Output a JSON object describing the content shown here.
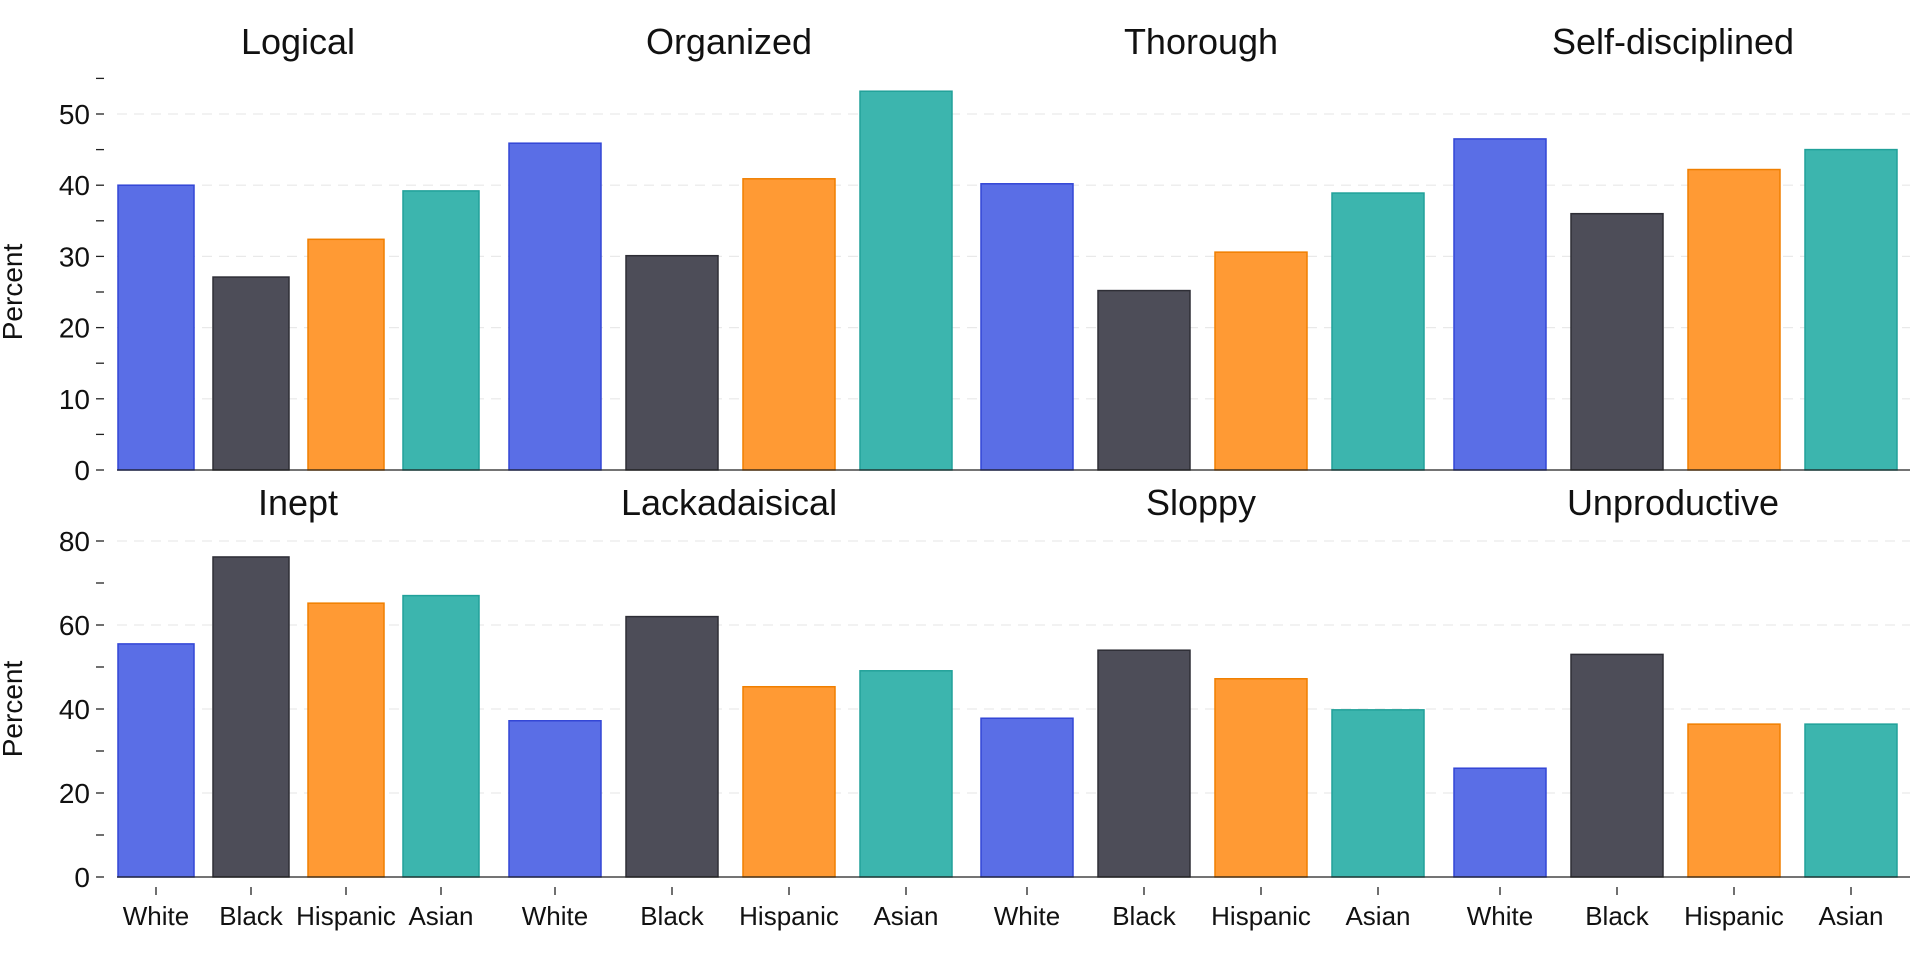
{
  "chart_data": [
    {
      "type": "bar",
      "row": "top",
      "ylabel": "Percent",
      "ylim": [
        0,
        55
      ],
      "yticks": [
        0,
        10,
        20,
        30,
        40,
        50
      ],
      "grid": true,
      "panels": [
        {
          "title": "Logical",
          "categories": [
            "White",
            "Black",
            "Hispanic",
            "Asian"
          ],
          "values": [
            40.0,
            27.1,
            32.4,
            39.2
          ]
        },
        {
          "title": "Organized",
          "categories": [
            "White",
            "Black",
            "Hispanic",
            "Asian"
          ],
          "values": [
            45.9,
            30.1,
            40.9,
            53.2
          ]
        },
        {
          "title": "Thorough",
          "categories": [
            "White",
            "Black",
            "Hispanic",
            "Asian"
          ],
          "values": [
            40.2,
            25.2,
            30.6,
            38.9
          ]
        },
        {
          "title": "Self-disciplined",
          "categories": [
            "White",
            "Black",
            "Hispanic",
            "Asian"
          ],
          "values": [
            46.5,
            36.0,
            42.2,
            45.0
          ]
        }
      ]
    },
    {
      "type": "bar",
      "row": "bottom",
      "ylabel": "Percent",
      "ylim": [
        0,
        80
      ],
      "yticks": [
        0,
        20,
        40,
        60,
        80
      ],
      "grid": true,
      "panels": [
        {
          "title": "Inept",
          "categories": [
            "White",
            "Black",
            "Hispanic",
            "Asian"
          ],
          "values": [
            55.5,
            76.2,
            65.2,
            67.0
          ]
        },
        {
          "title": "Lackadaisical",
          "categories": [
            "White",
            "Black",
            "Hispanic",
            "Asian"
          ],
          "values": [
            37.2,
            62.0,
            45.3,
            49.1
          ]
        },
        {
          "title": "Sloppy",
          "categories": [
            "White",
            "Black",
            "Hispanic",
            "Asian"
          ],
          "values": [
            37.8,
            54.0,
            47.2,
            39.8
          ]
        },
        {
          "title": "Unproductive",
          "categories": [
            "White",
            "Black",
            "Hispanic",
            "Asian"
          ],
          "values": [
            25.9,
            53.0,
            36.4,
            36.4
          ]
        }
      ]
    }
  ],
  "colors": {
    "White": "#5a6ee6",
    "Black": "#4d4d58",
    "Hispanic": "#ff9a34",
    "Asian": "#3cb5ae"
  },
  "bar_stroke_colors": {
    "White": "#3346d6",
    "Black": "#2e2e36",
    "Hispanic": "#f07f00",
    "Asian": "#21a19a"
  }
}
